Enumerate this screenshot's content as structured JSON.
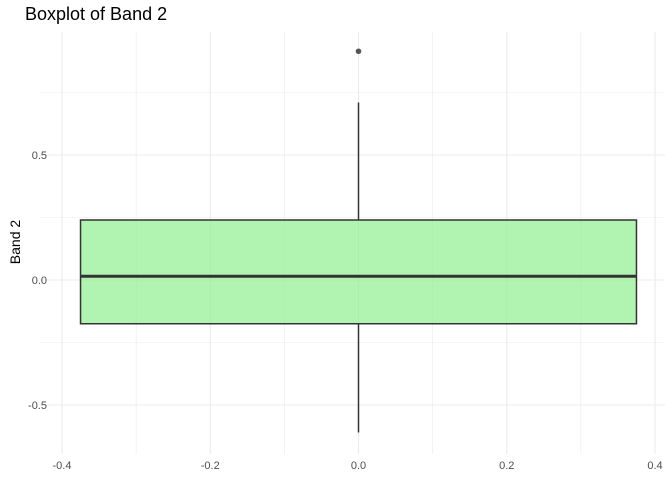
{
  "chart_data": {
    "type": "boxplot",
    "title": "Boxplot of Band 2",
    "xlabel": "",
    "ylabel": "Band 2",
    "xlim": [
      -0.4,
      0.4
    ],
    "ylim": [
      -0.5,
      0.5
    ],
    "x_ticks": [
      "-0.4",
      "-0.2",
      "0.0",
      "0.2",
      "0.4"
    ],
    "y_ticks": [
      "0.5",
      "0.0",
      "-0.5"
    ],
    "box": {
      "x_center": 0.0,
      "x_halfwidth": 0.375,
      "whisker_low": -0.61,
      "q1": -0.175,
      "median": 0.015,
      "q3": 0.24,
      "whisker_high": 0.71,
      "outliers": [
        0.915
      ],
      "fill_color": "#90ee90",
      "fill_opacity": 0.7,
      "line_color": "#333333",
      "outlier_color": "#555555"
    },
    "grid": true,
    "gridline_color": "#ebebeb"
  }
}
